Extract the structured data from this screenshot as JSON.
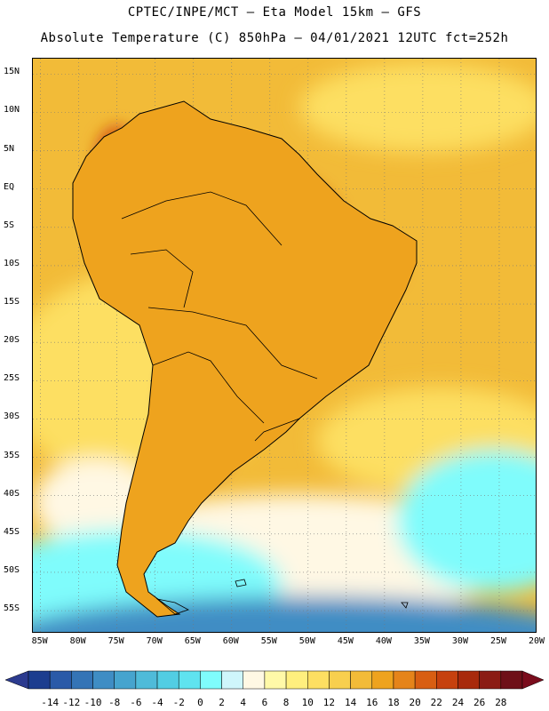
{
  "header": {
    "line1": "CPTEC/INPE/MCT —  Eta Model 15km — GFS",
    "line2": "Absolute Temperature (C) 850hPa — 04/01/2021 12UTC fct=252h"
  },
  "axes": {
    "lat_labels": [
      "15N",
      "10N",
      "5N",
      "EQ",
      "5S",
      "10S",
      "15S",
      "20S",
      "25S",
      "30S",
      "35S",
      "40S",
      "45S",
      "50S",
      "55S"
    ],
    "lat_values": [
      15,
      10,
      5,
      0,
      -5,
      -10,
      -15,
      -20,
      -25,
      -30,
      -35,
      -40,
      -45,
      -50,
      -55
    ],
    "lon_labels": [
      "85W",
      "80W",
      "75W",
      "70W",
      "65W",
      "60W",
      "55W",
      "50W",
      "45W",
      "40W",
      "35W",
      "30W",
      "25W",
      "20W"
    ],
    "lon_values": [
      -85,
      -80,
      -75,
      -70,
      -65,
      -60,
      -55,
      -50,
      -45,
      -40,
      -35,
      -30,
      -25,
      -20
    ],
    "lat_range": [
      -58,
      17
    ],
    "lon_range": [
      -86,
      -20
    ]
  },
  "colorbar": {
    "labels": [
      "-14",
      "-12",
      "-10",
      "-8",
      "-6",
      "-4",
      "-2",
      "0",
      "2",
      "4",
      "6",
      "8",
      "10",
      "12",
      "14",
      "16",
      "18",
      "20",
      "22",
      "24",
      "26",
      "28"
    ],
    "colors": [
      "#1c3d8f",
      "#2a5aa8",
      "#3474b6",
      "#3f8dc4",
      "#46a4ce",
      "#4fbbd9",
      "#52cde3",
      "#5fe3ef",
      "#7ffcfc",
      "#cff6fb",
      "#fff8e4",
      "#fff9a8",
      "#ffef7e",
      "#fddf62",
      "#f8cf4e",
      "#f2bb38",
      "#eea31e",
      "#e5841a",
      "#d85e12",
      "#c6410e",
      "#a82a0c",
      "#8b1c14",
      "#6e1018"
    ],
    "arrow_left": "#2c3b8f",
    "arrow_right": "#7a0c1c"
  },
  "palette": {
    "ocean_warm": "#f2bb38",
    "ocean_mid": "#fddf62",
    "ocean_pale": "#fff8e4",
    "ocean_cool": "#7ffcfc",
    "ocean_cold": "#3f8dc4",
    "land_warm": "#eea31e",
    "land_hot": "#d85e12",
    "land_hotter": "#c6410e",
    "land_hottest": "#8b1c14"
  }
}
